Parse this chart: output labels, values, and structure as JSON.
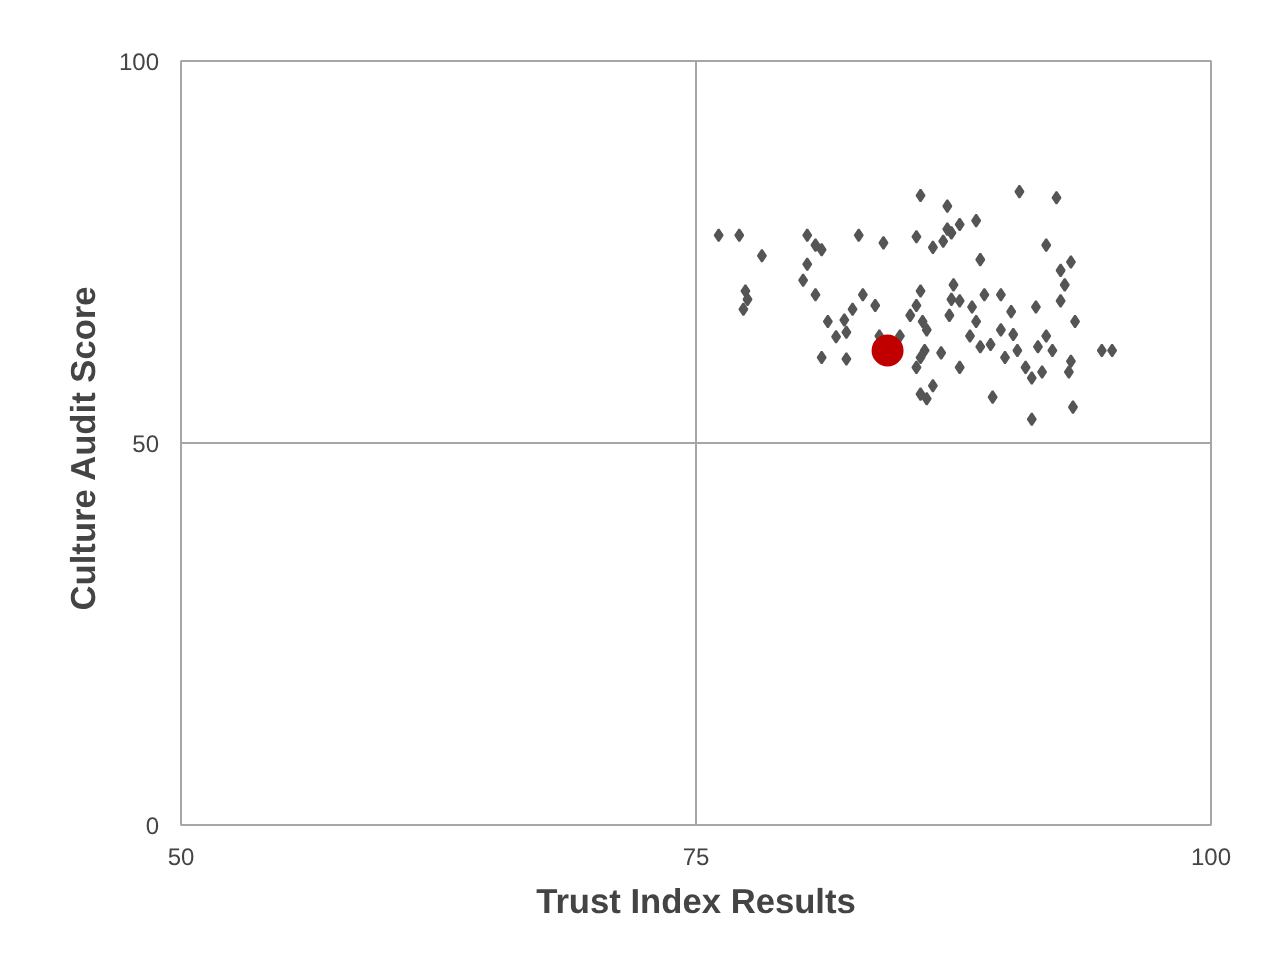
{
  "chart_data": {
    "type": "scatter",
    "xlabel": "Trust Index Results",
    "ylabel": "Culture  Audit Score",
    "xlim": [
      50,
      100
    ],
    "ylim": [
      0,
      100
    ],
    "xticks": [
      50,
      75,
      100
    ],
    "yticks": [
      0,
      50,
      100
    ],
    "grid": false,
    "marker": "diamond",
    "ref_lines": [
      {
        "axis": "x",
        "value": 75,
        "color": "#a6a6a6"
      },
      {
        "axis": "y",
        "value": 50,
        "color": "#a6a6a6"
      }
    ],
    "series": [
      {
        "color": "#555555",
        "x": [
          76.1,
          77.1,
          78.2,
          77.4,
          77.5,
          77.3,
          80.4,
          80.8,
          81.1,
          80.4,
          80.2,
          80.8,
          82.9,
          84.1,
          82.2,
          81.4,
          82.3,
          81.1,
          81.8,
          82.3,
          82.6,
          83.1,
          83.7,
          83.9,
          84.4,
          84.9,
          85.4,
          85.9,
          85.7,
          86.5,
          85.9,
          85.7,
          86.1,
          85.9,
          85.7,
          85.9,
          86.2,
          86.5,
          86.0,
          87.2,
          87.2,
          87.4,
          87.0,
          87.8,
          88.6,
          88.8,
          87.5,
          87.4,
          87.3,
          87.8,
          88.4,
          89.0,
          88.8,
          88.3,
          88.6,
          89.8,
          90.3,
          90.0,
          90.6,
          91.0,
          91.5,
          92.0,
          92.7,
          92.9,
          93.2,
          92.7,
          93.4,
          92.0,
          91.6,
          92.3,
          91.8,
          91.3,
          93.1,
          93.3,
          89.4,
          90.7,
          92.5,
          91.3,
          94.7,
          95.2,
          93.2,
          90.4,
          86.9,
          89.3,
          87.8,
          89.8,
          86.2
        ],
        "values": [
          77.2,
          77.2,
          74.5,
          69.9,
          68.8,
          67.5,
          77.2,
          75.9,
          75.3,
          73.4,
          71.3,
          69.4,
          77.2,
          76.2,
          66.1,
          65.9,
          61.0,
          61.2,
          63.9,
          64.5,
          67.5,
          69.4,
          68.0,
          64.0,
          null,
          64.0,
          66.7,
          82.4,
          77.0,
          75.6,
          69.9,
          68.0,
          62.1,
          61.2,
          59.9,
          56.4,
          55.8,
          57.5,
          65.9,
          78.0,
          81.0,
          77.5,
          76.4,
          78.6,
          79.1,
          74.0,
          70.7,
          68.8,
          66.7,
          68.6,
          67.8,
          69.4,
          62.6,
          64.0,
          65.9,
          69.4,
          67.2,
          61.2,
          62.1,
          59.9,
          67.8,
          75.9,
          72.6,
          70.7,
          73.7,
          68.6,
          65.9,
          64.0,
          62.6,
          62.1,
          59.3,
          58.5,
          59.3,
          54.7,
          56.0,
          82.9,
          82.1,
          53.1,
          62.1,
          62.1,
          60.7,
          64.2,
          61.8,
          62.9,
          59.9,
          64.8,
          64.8
        ]
      },
      {
        "color": "#c00000",
        "marker": "circle",
        "x": [
          84.3
        ],
        "values": [
          62.1
        ]
      }
    ]
  }
}
